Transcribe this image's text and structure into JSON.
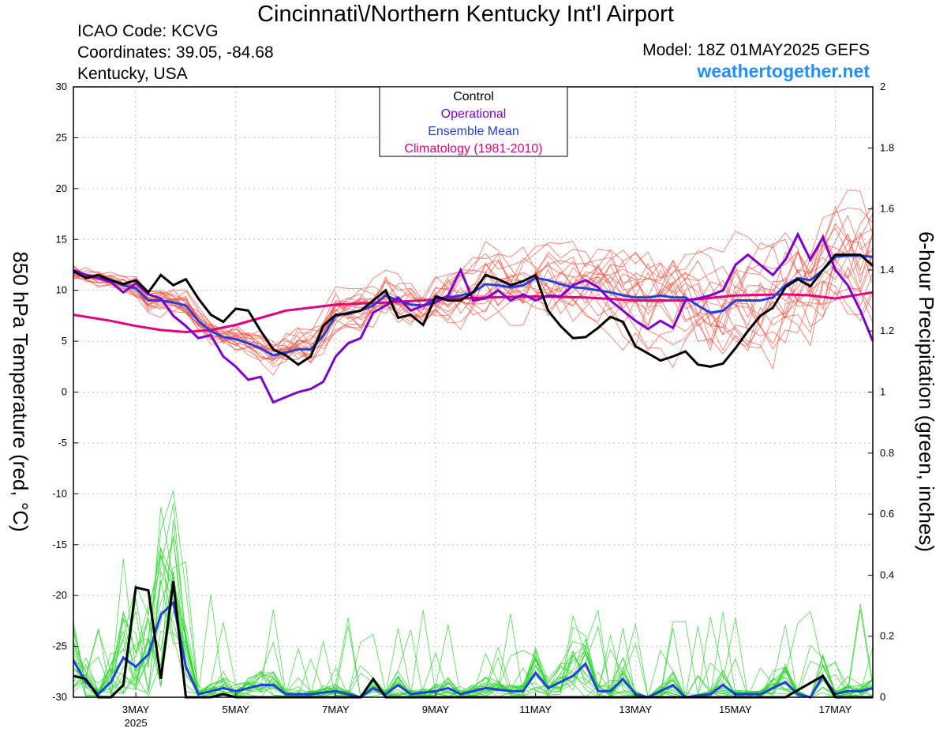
{
  "header": {
    "title": "Cincinnati\\/Northern Kentucky Int'l Airport",
    "icao": "ICAO Code: KCVG",
    "coords": "Coordinates: 39.05, -84.68",
    "region": "Kentucky, USA",
    "model": "Model: 18Z 01MAY2025 GEFS",
    "site": "weathertogether.net"
  },
  "chart_data": {
    "type": "line",
    "left_axis": {
      "label": "850 hPa Temperature (red, °C)",
      "range": [
        -30,
        30
      ],
      "ticks": [
        -30,
        -25,
        -20,
        -15,
        -10,
        -5,
        0,
        5,
        10,
        15,
        20,
        25,
        30
      ]
    },
    "right_axis": {
      "label": "6-hour Precipitation (green, inches)",
      "range": [
        0,
        2
      ],
      "ticks": [
        "0",
        "0.2",
        "0.4",
        "0.6",
        "0.8",
        "1",
        "1.2",
        "1.4",
        "1.6",
        "1.8",
        "2"
      ]
    },
    "x_axis": {
      "range_days": [
        1.75,
        17.75
      ],
      "ticks": [
        {
          "day": 3,
          "label": "3MAY",
          "sub": "2025"
        },
        {
          "day": 5,
          "label": "5MAY"
        },
        {
          "day": 7,
          "label": "7MAY"
        },
        {
          "day": 9,
          "label": "9MAY"
        },
        {
          "day": 11,
          "label": "11MAY"
        },
        {
          "day": 13,
          "label": "13MAY"
        },
        {
          "day": 15,
          "label": "15MAY"
        },
        {
          "day": 17,
          "label": "17MAY"
        }
      ]
    },
    "grid": true,
    "legend": {
      "placement": "top-center",
      "entries": [
        {
          "name": "Control",
          "color": "#000000"
        },
        {
          "name": "Operational",
          "color": "#8000d0"
        },
        {
          "name": "Ensemble Mean",
          "color": "#2040e0"
        },
        {
          "name": "Climatology (1981-2010)",
          "color": "#e6007e"
        }
      ]
    },
    "colors": {
      "members_temp": "#ff4a3a",
      "members_precip": "#28d828",
      "control": "#000000",
      "operational": "#8000d0",
      "mean": "#2040e0",
      "climatology": "#e6007e"
    },
    "temperature": {
      "control": [
        [
          1.75,
          11.9
        ],
        [
          2.0,
          11.2
        ],
        [
          2.25,
          11.5
        ],
        [
          2.5,
          11.0
        ],
        [
          2.75,
          10.6
        ],
        [
          3.0,
          11.0
        ],
        [
          3.25,
          9.8
        ],
        [
          3.5,
          11.5
        ],
        [
          3.75,
          10.5
        ],
        [
          4.0,
          11.1
        ],
        [
          4.25,
          9.2
        ],
        [
          4.5,
          7.6
        ],
        [
          4.75,
          6.9
        ],
        [
          5.0,
          8.2
        ],
        [
          5.25,
          8.0
        ],
        [
          5.5,
          6.0
        ],
        [
          5.75,
          4.2
        ],
        [
          6.0,
          3.6
        ],
        [
          6.25,
          2.7
        ],
        [
          6.5,
          3.5
        ],
        [
          6.75,
          6.5
        ],
        [
          7.0,
          7.6
        ],
        [
          7.25,
          7.7
        ],
        [
          7.5,
          8.0
        ],
        [
          7.75,
          9.0
        ],
        [
          8.0,
          10.0
        ],
        [
          8.25,
          7.3
        ],
        [
          8.5,
          7.6
        ],
        [
          8.75,
          6.6
        ],
        [
          9.0,
          9.4
        ],
        [
          9.25,
          9.0
        ],
        [
          9.5,
          9.0
        ],
        [
          9.75,
          9.8
        ],
        [
          10.0,
          11.5
        ],
        [
          10.25,
          11.1
        ],
        [
          10.5,
          10.5
        ],
        [
          10.75,
          10.9
        ],
        [
          11.0,
          11.5
        ],
        [
          11.25,
          8.0
        ],
        [
          11.5,
          6.5
        ],
        [
          11.75,
          5.3
        ],
        [
          12.0,
          5.4
        ],
        [
          12.25,
          6.3
        ],
        [
          12.5,
          7.4
        ],
        [
          12.75,
          6.9
        ],
        [
          13.0,
          4.5
        ],
        [
          13.25,
          3.8
        ],
        [
          13.5,
          3.1
        ],
        [
          13.75,
          3.5
        ],
        [
          14.0,
          4.0
        ],
        [
          14.25,
          2.7
        ],
        [
          14.5,
          2.5
        ],
        [
          14.75,
          2.8
        ],
        [
          15.0,
          4.3
        ],
        [
          15.25,
          6.0
        ],
        [
          15.5,
          7.5
        ],
        [
          15.75,
          8.3
        ],
        [
          16.0,
          10.3
        ],
        [
          16.25,
          11.1
        ],
        [
          16.5,
          10.4
        ],
        [
          16.75,
          12.0
        ],
        [
          17.0,
          13.5
        ],
        [
          17.25,
          13.5
        ],
        [
          17.5,
          13.5
        ],
        [
          17.75,
          12.4
        ]
      ],
      "operational": [
        [
          1.75,
          12.0
        ],
        [
          2.0,
          11.5
        ],
        [
          2.25,
          11.2
        ],
        [
          2.5,
          10.8
        ],
        [
          2.75,
          9.8
        ],
        [
          3.0,
          10.7
        ],
        [
          3.25,
          9.6
        ],
        [
          3.5,
          9.2
        ],
        [
          3.75,
          7.5
        ],
        [
          4.0,
          6.5
        ],
        [
          4.25,
          5.3
        ],
        [
          4.5,
          5.6
        ],
        [
          4.75,
          3.5
        ],
        [
          5.0,
          2.5
        ],
        [
          5.25,
          1.2
        ],
        [
          5.5,
          1.5
        ],
        [
          5.75,
          -1.0
        ],
        [
          6.0,
          -0.5
        ],
        [
          6.25,
          0.0
        ],
        [
          6.5,
          0.3
        ],
        [
          6.75,
          1.0
        ],
        [
          7.0,
          3.5
        ],
        [
          7.25,
          4.8
        ],
        [
          7.5,
          5.3
        ],
        [
          7.75,
          7.8
        ],
        [
          8.0,
          8.5
        ],
        [
          8.25,
          9.3
        ],
        [
          8.5,
          8.0
        ],
        [
          8.75,
          8.5
        ],
        [
          9.0,
          8.8
        ],
        [
          9.25,
          9.5
        ],
        [
          9.5,
          12.0
        ],
        [
          9.75,
          9.0
        ],
        [
          10.0,
          9.2
        ],
        [
          10.25,
          10.0
        ],
        [
          10.5,
          9.0
        ],
        [
          10.75,
          9.6
        ],
        [
          11.0,
          9.0
        ],
        [
          11.25,
          9.5
        ],
        [
          11.5,
          9.4
        ],
        [
          11.75,
          10.5
        ],
        [
          12.0,
          11.0
        ],
        [
          12.25,
          10.3
        ],
        [
          12.5,
          9.0
        ],
        [
          12.75,
          8.0
        ],
        [
          13.0,
          7.0
        ],
        [
          13.25,
          6.2
        ],
        [
          13.5,
          7.0
        ],
        [
          13.75,
          6.3
        ],
        [
          14.0,
          9.0
        ],
        [
          14.25,
          9.2
        ],
        [
          14.5,
          9.5
        ],
        [
          14.75,
          10.0
        ],
        [
          15.0,
          12.5
        ],
        [
          15.25,
          13.5
        ],
        [
          15.5,
          12.5
        ],
        [
          15.75,
          11.5
        ],
        [
          16.0,
          13.0
        ],
        [
          16.25,
          15.5
        ],
        [
          16.5,
          13.0
        ],
        [
          16.75,
          15.2
        ],
        [
          17.0,
          12.0
        ],
        [
          17.25,
          10.5
        ],
        [
          17.5,
          8.0
        ],
        [
          17.75,
          5.0
        ]
      ],
      "mean": [
        [
          1.75,
          11.8
        ],
        [
          2.0,
          11.5
        ],
        [
          2.25,
          11.2
        ],
        [
          2.5,
          11.0
        ],
        [
          2.75,
          10.5
        ],
        [
          3.0,
          10.2
        ],
        [
          3.25,
          9.0
        ],
        [
          3.5,
          9.0
        ],
        [
          3.75,
          8.8
        ],
        [
          4.0,
          8.5
        ],
        [
          4.25,
          7.0
        ],
        [
          4.5,
          6.0
        ],
        [
          4.75,
          5.4
        ],
        [
          5.0,
          5.2
        ],
        [
          5.25,
          4.8
        ],
        [
          5.5,
          4.3
        ],
        [
          5.75,
          3.6
        ],
        [
          6.0,
          3.9
        ],
        [
          6.25,
          4.2
        ],
        [
          6.5,
          4.2
        ],
        [
          6.75,
          5.5
        ],
        [
          7.0,
          7.5
        ],
        [
          7.25,
          7.8
        ],
        [
          7.5,
          8.0
        ],
        [
          7.75,
          8.5
        ],
        [
          8.0,
          9.5
        ],
        [
          8.25,
          9.0
        ],
        [
          8.5,
          8.6
        ],
        [
          8.75,
          8.5
        ],
        [
          9.0,
          9.2
        ],
        [
          9.25,
          9.3
        ],
        [
          9.5,
          9.5
        ],
        [
          9.75,
          9.8
        ],
        [
          10.0,
          10.6
        ],
        [
          10.25,
          10.5
        ],
        [
          10.5,
          10.3
        ],
        [
          10.75,
          10.5
        ],
        [
          11.0,
          11.2
        ],
        [
          11.25,
          11.0
        ],
        [
          11.5,
          10.6
        ],
        [
          11.75,
          10.3
        ],
        [
          12.0,
          10.2
        ],
        [
          12.25,
          10.0
        ],
        [
          12.5,
          9.8
        ],
        [
          12.75,
          9.5
        ],
        [
          13.0,
          9.3
        ],
        [
          13.25,
          9.3
        ],
        [
          13.5,
          9.5
        ],
        [
          13.75,
          9.3
        ],
        [
          14.0,
          9.3
        ],
        [
          14.25,
          8.5
        ],
        [
          14.5,
          7.8
        ],
        [
          14.75,
          8.0
        ],
        [
          15.0,
          9.0
        ],
        [
          15.25,
          9.0
        ],
        [
          15.5,
          9.0
        ],
        [
          15.75,
          9.3
        ],
        [
          16.0,
          10.5
        ],
        [
          16.25,
          11.2
        ],
        [
          16.5,
          11.0
        ],
        [
          16.75,
          12.0
        ],
        [
          17.0,
          13.3
        ],
        [
          17.25,
          13.4
        ],
        [
          17.5,
          13.4
        ],
        [
          17.75,
          13.3
        ]
      ],
      "climatology": [
        [
          1.75,
          7.6
        ],
        [
          2.5,
          7.0
        ],
        [
          3.0,
          6.5
        ],
        [
          3.5,
          6.1
        ],
        [
          4.0,
          5.9
        ],
        [
          4.5,
          6.1
        ],
        [
          5.0,
          6.6
        ],
        [
          5.5,
          7.3
        ],
        [
          6.0,
          8.0
        ],
        [
          6.5,
          8.3
        ],
        [
          7.0,
          8.6
        ],
        [
          7.5,
          8.7
        ],
        [
          8.0,
          8.8
        ],
        [
          9.0,
          9.1
        ],
        [
          10.0,
          9.3
        ],
        [
          11.0,
          9.4
        ],
        [
          12.0,
          9.3
        ],
        [
          13.0,
          9.0
        ],
        [
          14.0,
          9.0
        ],
        [
          15.0,
          9.5
        ],
        [
          16.0,
          9.6
        ],
        [
          16.5,
          9.5
        ],
        [
          17.0,
          9.2
        ],
        [
          17.5,
          9.6
        ],
        [
          17.75,
          9.8
        ]
      ]
    },
    "precipitation": {
      "control": [
        [
          1.75,
          0.07
        ],
        [
          2.0,
          0.06
        ],
        [
          2.25,
          0.0
        ],
        [
          2.5,
          0.0
        ],
        [
          2.75,
          0.04
        ],
        [
          3.0,
          0.36
        ],
        [
          3.25,
          0.35
        ],
        [
          3.5,
          0.06
        ],
        [
          3.75,
          0.38
        ],
        [
          4.0,
          0.0
        ],
        [
          4.25,
          0.0
        ],
        [
          4.5,
          0.0
        ],
        [
          4.75,
          0.01
        ],
        [
          5.0,
          0.0
        ],
        [
          5.25,
          0.0
        ],
        [
          6.75,
          0.0
        ],
        [
          7.0,
          0.0
        ],
        [
          7.5,
          0.0
        ],
        [
          7.75,
          0.06
        ],
        [
          8.0,
          0.0
        ],
        [
          10.0,
          0.0
        ],
        [
          12.0,
          0.0
        ],
        [
          14.0,
          0.0
        ],
        [
          16.0,
          0.0
        ],
        [
          16.75,
          0.07
        ],
        [
          17.0,
          0.0
        ],
        [
          17.75,
          0.0
        ]
      ],
      "mean": [
        [
          1.75,
          0.12
        ],
        [
          2.0,
          0.05
        ],
        [
          2.25,
          0.01
        ],
        [
          2.5,
          0.05
        ],
        [
          2.75,
          0.13
        ],
        [
          3.0,
          0.1
        ],
        [
          3.25,
          0.14
        ],
        [
          3.5,
          0.27
        ],
        [
          3.75,
          0.31
        ],
        [
          4.0,
          0.1
        ],
        [
          4.25,
          0.01
        ],
        [
          4.5,
          0.02
        ],
        [
          4.75,
          0.03
        ],
        [
          5.0,
          0.02
        ],
        [
          5.25,
          0.03
        ],
        [
          5.5,
          0.04
        ],
        [
          5.75,
          0.04
        ],
        [
          6.0,
          0.01
        ],
        [
          6.5,
          0.01
        ],
        [
          7.0,
          0.02
        ],
        [
          7.5,
          0.0
        ],
        [
          7.75,
          0.03
        ],
        [
          8.0,
          0.01
        ],
        [
          8.25,
          0.04
        ],
        [
          8.5,
          0.01
        ],
        [
          9.0,
          0.02
        ],
        [
          9.25,
          0.03
        ],
        [
          9.5,
          0.01
        ],
        [
          10.0,
          0.03
        ],
        [
          10.5,
          0.02
        ],
        [
          10.75,
          0.02
        ],
        [
          11.0,
          0.08
        ],
        [
          11.25,
          0.03
        ],
        [
          11.5,
          0.05
        ],
        [
          11.75,
          0.07
        ],
        [
          12.0,
          0.11
        ],
        [
          12.25,
          0.02
        ],
        [
          12.5,
          0.02
        ],
        [
          12.75,
          0.06
        ],
        [
          13.0,
          0.01
        ],
        [
          13.25,
          0.0
        ],
        [
          13.5,
          0.02
        ],
        [
          13.75,
          0.04
        ],
        [
          14.0,
          0.0
        ],
        [
          14.5,
          0.01
        ],
        [
          14.75,
          0.04
        ],
        [
          15.0,
          0.01
        ],
        [
          15.5,
          0.01
        ],
        [
          16.0,
          0.05
        ],
        [
          16.25,
          0.01
        ],
        [
          16.5,
          0.0
        ],
        [
          16.75,
          0.07
        ],
        [
          17.0,
          0.01
        ],
        [
          17.25,
          0.02
        ],
        [
          17.5,
          0.02
        ],
        [
          17.75,
          0.03
        ]
      ]
    }
  }
}
